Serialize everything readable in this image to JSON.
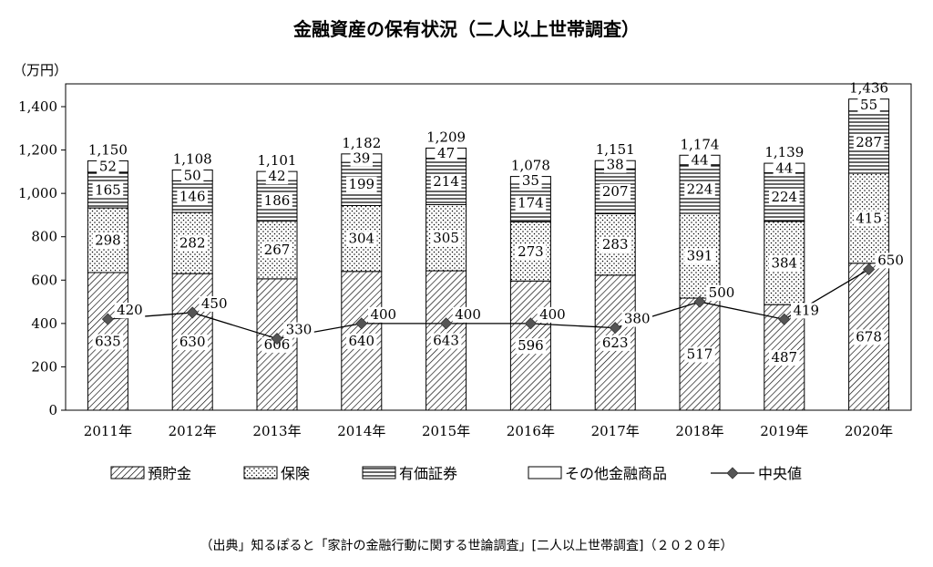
{
  "title": "金融資産の保有状況（二人以上世帯調査）",
  "unit_label": "（万円）",
  "source": "（出典」知るぽると「家計の金融行動に関する世論調査」[二人以上世帯調査]（２０２０年）",
  "chart_data": {
    "type": "bar",
    "stacked": true,
    "categories": [
      "2011年",
      "2012年",
      "2013年",
      "2014年",
      "2015年",
      "2016年",
      "2017年",
      "2018年",
      "2019年",
      "2020年"
    ],
    "y_ticks": [
      "0",
      "200",
      "400",
      "600",
      "800",
      "1,000",
      "1,200",
      "1,400"
    ],
    "ylim": [
      0,
      1436
    ],
    "series": [
      {
        "name": "預貯金",
        "pattern": "diagonal-hatch",
        "values": [
          635,
          630,
          606,
          640,
          643,
          596,
          623,
          517,
          487,
          678
        ]
      },
      {
        "name": "保険",
        "pattern": "dots",
        "values": [
          298,
          282,
          267,
          304,
          305,
          273,
          283,
          391,
          384,
          415
        ]
      },
      {
        "name": "有価証券",
        "pattern": "horizontal-lines",
        "values": [
          165,
          146,
          186,
          199,
          214,
          174,
          207,
          224,
          224,
          287
        ]
      },
      {
        "name": "その他金融商品",
        "pattern": "plain",
        "values": [
          52,
          50,
          42,
          39,
          47,
          35,
          38,
          44,
          44,
          55
        ]
      }
    ],
    "totals": [
      "1,150",
      "1,108",
      "1,101",
      "1,182",
      "1,209",
      "1,078",
      "1,151",
      "1,174",
      "1,139",
      "1,436"
    ],
    "line": {
      "name": "中央値",
      "values": [
        420,
        450,
        330,
        400,
        400,
        400,
        380,
        500,
        419,
        650
      ]
    },
    "legend": [
      "預貯金",
      "保険",
      "有価証券",
      "その他金融商品",
      "中央値"
    ],
    "legend_position": "bottom",
    "grid": false
  }
}
